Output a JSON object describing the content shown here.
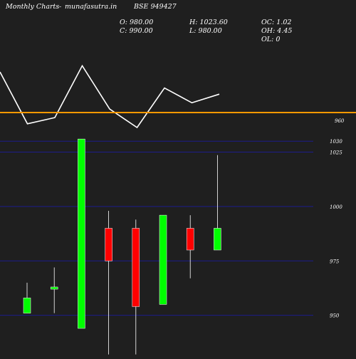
{
  "header": {
    "site_title": "Monthly Charts",
    "site_sep": "-",
    "site_domain": "munafasutra.in",
    "symbol": "BSE 949427",
    "open": "O: 980.00",
    "close": "C: 990.00",
    "high": "H: 1023.60",
    "low": "L: 980.00",
    "oc": "OC: 1.02",
    "oh": "OH: 4.45",
    "ol": "OL: 0"
  },
  "colors": {
    "background": "#1f1f1f",
    "grid": "#1c1c8c",
    "up": "#00ff00",
    "down": "#ff0000",
    "wick": "#ffffff",
    "line": "#ffffff",
    "marker": "#ff9900"
  },
  "chart_data": [
    {
      "type": "line",
      "title": "",
      "x": [
        0,
        1,
        2,
        3,
        4,
        5,
        6,
        7,
        8
      ],
      "values": [
        1000,
        958,
        963,
        1005,
        970,
        955,
        987,
        975,
        982
      ],
      "marker_level": 960,
      "marker_label": "960",
      "ylim": [
        940,
        1015
      ]
    },
    {
      "type": "candlestick",
      "title": "",
      "ylim": [
        944,
        1034
      ],
      "yticks": [
        1030,
        1025,
        1000,
        975,
        950
      ],
      "ytick_labels": [
        "1030",
        "1025",
        "1000",
        "975",
        "950"
      ],
      "grid": true,
      "candles": [
        {
          "open": 951,
          "high": 965,
          "low": 951,
          "close": 958
        },
        {
          "open": 962,
          "high": 972,
          "low": 951,
          "close": 963
        },
        {
          "open": 944,
          "high": 1031,
          "low": 944,
          "close": 1031
        },
        {
          "open": 990,
          "high": 998,
          "low": 932,
          "close": 975
        },
        {
          "open": 990,
          "high": 994,
          "low": 932,
          "close": 954
        },
        {
          "open": 955,
          "high": 996,
          "low": 955,
          "close": 996
        },
        {
          "open": 990,
          "high": 996,
          "low": 967,
          "close": 980
        },
        {
          "open": 980,
          "high": 1023.6,
          "low": 980,
          "close": 990
        }
      ]
    }
  ]
}
